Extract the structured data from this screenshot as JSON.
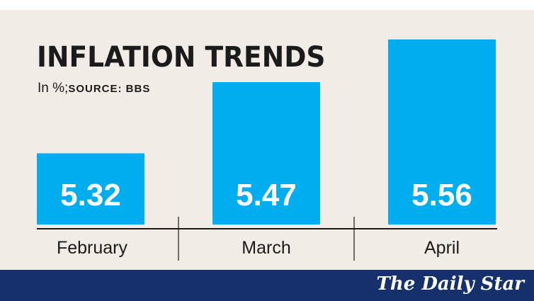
{
  "header": {
    "title": "INFLATION TRENDS",
    "units": "In %;",
    "source": "SOURCE: BBS"
  },
  "footer": {
    "brand": "The Daily Star"
  },
  "colors": {
    "bar": "#00adef",
    "background": "#f1ede6",
    "footer": "#15306a",
    "text": "#1b1b1b"
  },
  "chart_data": {
    "type": "bar",
    "title": "INFLATION TRENDS",
    "subtitle": "In %; SOURCE: BBS",
    "categories": [
      "February",
      "March",
      "April"
    ],
    "values": [
      5.32,
      5.47,
      5.56
    ],
    "data_labels": [
      "5.32",
      "5.47",
      "5.56"
    ],
    "grid": false,
    "legend": "none"
  }
}
